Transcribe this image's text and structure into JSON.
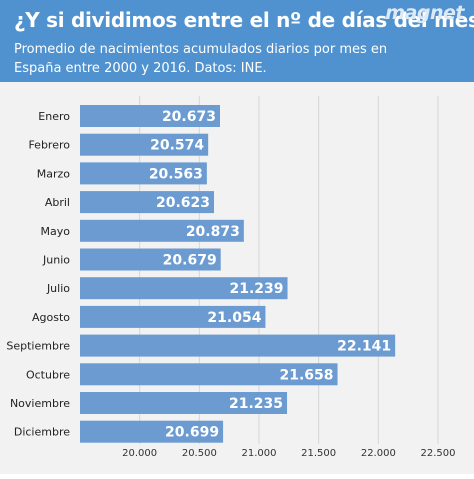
{
  "header": {
    "title": "¿Y si dividimos entre el nº de días del mes?",
    "subtitle": "Promedio de nacimientos acumulados diarios por mes en España entre 2000 y 2016. Datos: INE.",
    "brand": "magnet"
  },
  "colors": {
    "header_bg": "#4f92cf",
    "bar": "#6b9bd1",
    "bar_label": "#ffffff",
    "background": "#f2f2f2"
  },
  "chart_data": {
    "type": "bar",
    "orientation": "horizontal",
    "categories": [
      "Enero",
      "Febrero",
      "Marzo",
      "Abril",
      "Mayo",
      "Junio",
      "Julio",
      "Agosto",
      "Septiembre",
      "Octubre",
      "Noviembre",
      "Diciembre"
    ],
    "values": [
      20673,
      20574,
      20563,
      20623,
      20873,
      20679,
      21239,
      21054,
      22141,
      21658,
      21235,
      20699
    ],
    "value_labels": [
      "20.673",
      "20.574",
      "20.563",
      "20.623",
      "20.873",
      "20.679",
      "21.239",
      "21.054",
      "22.141",
      "21.658",
      "21.235",
      "20.699"
    ],
    "xlim": [
      19500,
      22500
    ],
    "xticks": [
      20000,
      20500,
      21000,
      21500,
      22000,
      22500
    ],
    "xtick_labels": [
      "20.000",
      "20.500",
      "21.000",
      "21.500",
      "22.000",
      "22.500"
    ],
    "grid": true
  }
}
